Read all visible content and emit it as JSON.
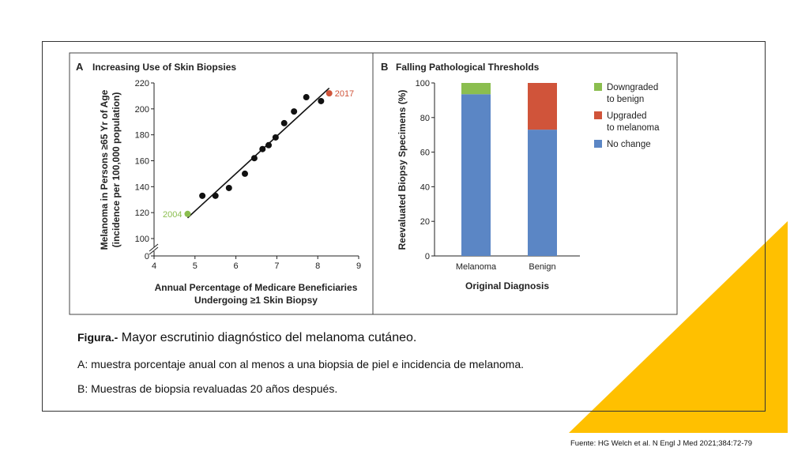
{
  "colors": {
    "accent_triangle": "#FFC000",
    "green": "#8BBE4F",
    "red": "#D0543A",
    "blue": "#5B86C5",
    "dark": "#111111"
  },
  "chart_data": [
    {
      "type": "scatter",
      "panel_letter": "A",
      "title": "Increasing Use of Skin Biopsies",
      "xlabel": [
        "Annual Percentage of Medicare Beneficiaries",
        "Undergoing ≥1 Skin Biopsy"
      ],
      "ylabel": [
        "Melanoma in Persons ≥65 Yr of Age",
        "(incidence per 100,000 population)"
      ],
      "xlim": [
        4,
        9
      ],
      "ylim": [
        100,
        220
      ],
      "y_break": true,
      "xticks": [
        "4",
        "5",
        "6",
        "7",
        "8",
        "9"
      ],
      "yticks": [
        "0",
        "100",
        "120",
        "140",
        "160",
        "180",
        "200",
        "220"
      ],
      "points": [
        {
          "x": 4.82,
          "y": 119,
          "label": "2004",
          "color": "#8BBE4F"
        },
        {
          "x": 5.18,
          "y": 133
        },
        {
          "x": 5.5,
          "y": 133
        },
        {
          "x": 5.83,
          "y": 139
        },
        {
          "x": 6.22,
          "y": 150
        },
        {
          "x": 6.45,
          "y": 162
        },
        {
          "x": 6.65,
          "y": 169
        },
        {
          "x": 6.8,
          "y": 172
        },
        {
          "x": 6.97,
          "y": 178
        },
        {
          "x": 7.18,
          "y": 189
        },
        {
          "x": 7.42,
          "y": 198
        },
        {
          "x": 7.72,
          "y": 209
        },
        {
          "x": 8.08,
          "y": 206
        },
        {
          "x": 8.28,
          "y": 212,
          "label": "2017",
          "color": "#D0543A"
        }
      ],
      "trendline": [
        {
          "x": 4.82,
          "y": 116
        },
        {
          "x": 8.28,
          "y": 216
        }
      ]
    },
    {
      "type": "bar",
      "stacked": true,
      "panel_letter": "B",
      "title": "Falling Pathological Thresholds",
      "xlabel": "Original Diagnosis",
      "ylabel": "Reevaluated Biopsy Specimens (%)",
      "ylim": [
        0,
        100
      ],
      "yticks": [
        "0",
        "20",
        "40",
        "60",
        "80",
        "100"
      ],
      "categories": [
        "Melanoma",
        "Benign"
      ],
      "series": [
        {
          "name": "No change",
          "color": "#5B86C5",
          "values": [
            93.5,
            73
          ]
        },
        {
          "name": "Downgraded to benign",
          "color": "#8BBE4F",
          "values": [
            6.5,
            0
          ]
        },
        {
          "name": "Upgraded to melanoma",
          "color": "#D0543A",
          "values": [
            0,
            27
          ]
        }
      ],
      "legend": [
        {
          "lines": [
            "Downgraded",
            "to benign"
          ],
          "color": "#8BBE4F"
        },
        {
          "lines": [
            "Upgraded",
            "to melanoma"
          ],
          "color": "#D0543A"
        },
        {
          "lines": [
            "No change"
          ],
          "color": "#5B86C5"
        }
      ],
      "legend_placement": "right"
    }
  ],
  "caption": {
    "title_bold": "Figura.-",
    "title_rest": " Mayor escrutinio diagnóstico del melanoma cutáneo.",
    "line_a": "A: muestra porcentaje anual  con al menos a una biopsia de piel e incidencia de melanoma.",
    "line_b": "B: Muestras de biopsia revaluadas 20 años después."
  },
  "source": "Fuente: HG Welch et al. N Engl J Med 2021;384:72-79"
}
